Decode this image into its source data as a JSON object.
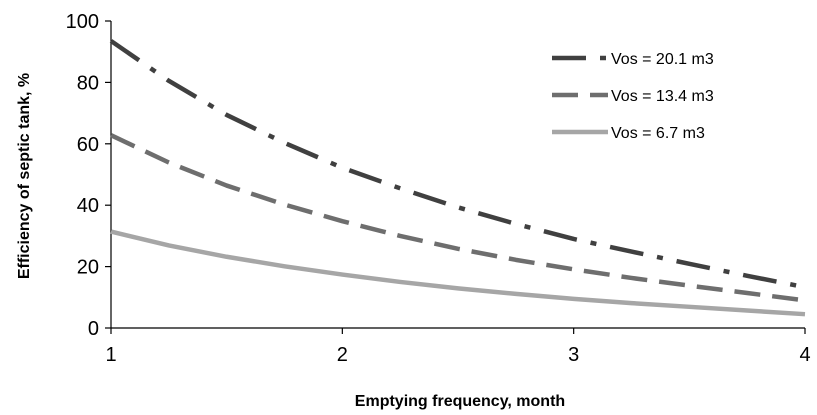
{
  "chart_data": {
    "type": "line",
    "title": "",
    "xlabel": "Emptying frequency, month",
    "ylabel": "Efficiency of septic tank, %",
    "xlim": [
      1,
      4
    ],
    "ylim": [
      0,
      100
    ],
    "x_ticks": [
      "1",
      "2",
      "3",
      "4"
    ],
    "y_ticks": [
      "0",
      "20",
      "40",
      "60",
      "80",
      "100"
    ],
    "grid": false,
    "legend_position": "top-right",
    "series": [
      {
        "name": "Vos = 20.1 m3",
        "color": "#404040",
        "style": "dash-dot",
        "x": [
          1,
          1.25,
          1.5,
          1.75,
          2,
          2.25,
          2.5,
          2.75,
          3,
          3.25,
          3.5,
          3.75,
          4
        ],
        "y": [
          93.5,
          80.5,
          69.4,
          60.3,
          52.2,
          45.5,
          39.3,
          33.9,
          29.0,
          24.9,
          20.9,
          17.0,
          13.3
        ]
      },
      {
        "name": "Vos = 13.4 m3",
        "color": "#6e6e6e",
        "style": "dashed",
        "x": [
          1,
          1.25,
          1.5,
          1.75,
          2,
          2.25,
          2.5,
          2.75,
          3,
          3.25,
          3.5,
          3.75,
          4
        ],
        "y": [
          62.8,
          53.9,
          46.4,
          40.2,
          34.8,
          30.0,
          25.8,
          22.2,
          19.1,
          16.3,
          13.8,
          11.4,
          9.0
        ]
      },
      {
        "name": "Vos = 6.7 m3",
        "color": "#a6a6a6",
        "style": "solid",
        "x": [
          1,
          1.25,
          1.5,
          1.75,
          2,
          2.25,
          2.5,
          2.75,
          3,
          3.25,
          3.5,
          3.75,
          4
        ],
        "y": [
          31.4,
          26.9,
          23.2,
          20.1,
          17.4,
          15.0,
          12.9,
          11.1,
          9.5,
          8.1,
          6.9,
          5.7,
          4.5
        ]
      }
    ]
  }
}
